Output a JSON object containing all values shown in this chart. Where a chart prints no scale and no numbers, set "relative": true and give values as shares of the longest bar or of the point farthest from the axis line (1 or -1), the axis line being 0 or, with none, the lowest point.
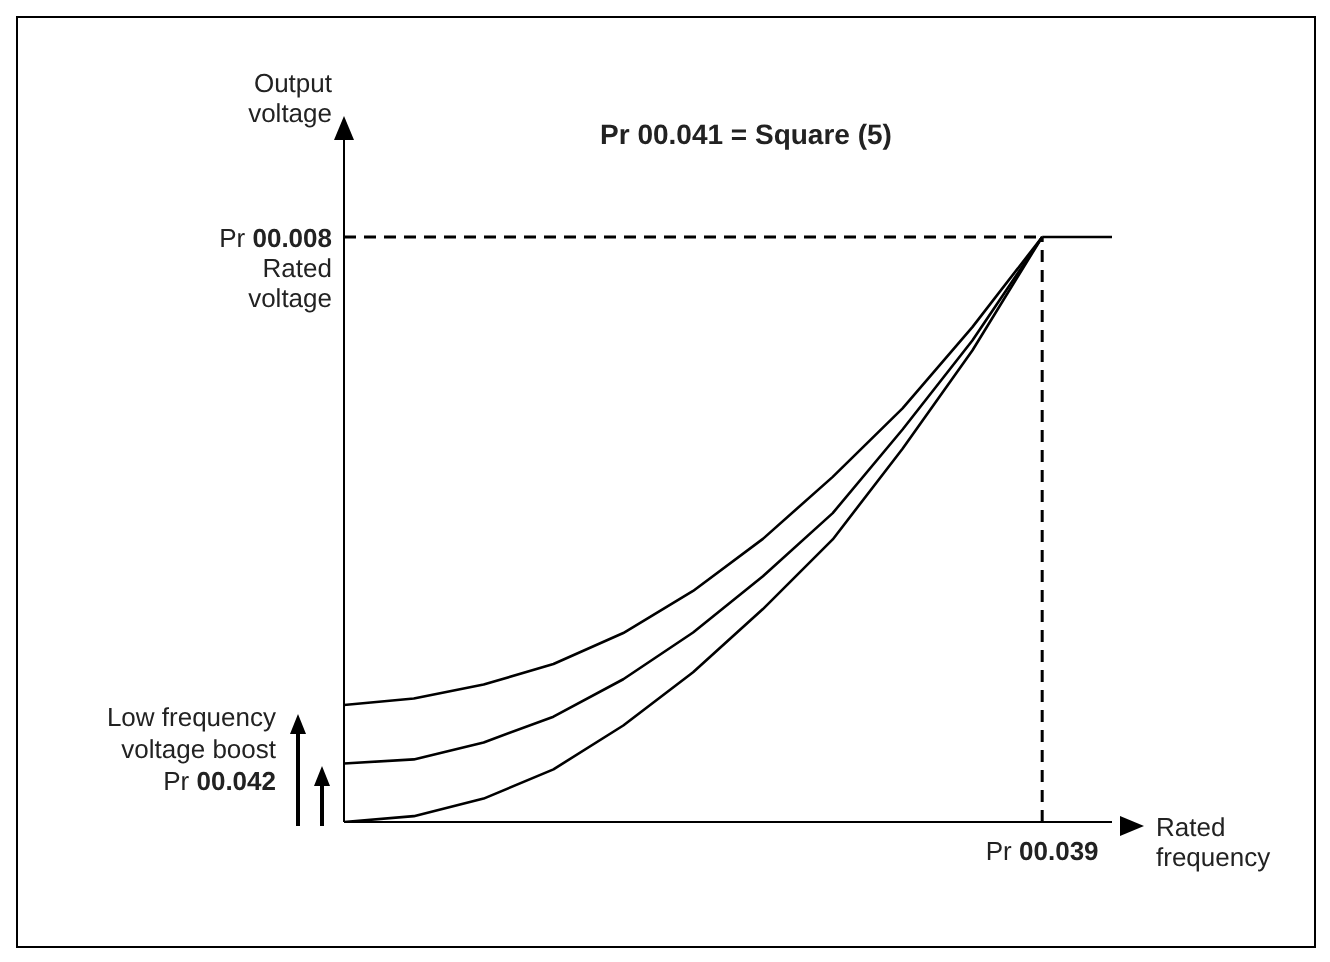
{
  "chart_data": {
    "type": "line",
    "title": "Pr 00.041 = Square (5)",
    "xlabel": "Rated\nfrequency",
    "ylabel": "Output\nvoltage",
    "relative": true,
    "categories": [
      null,
      null,
      null,
      null,
      null,
      null,
      null,
      null,
      null,
      null,
      null,
      null
    ],
    "series": [
      {
        "color": "#000000",
        "values": [
          0.2,
          0.211,
          0.235,
          0.27,
          0.323,
          0.395,
          0.484,
          0.59,
          0.707,
          0.846,
          1,
          null
        ]
      },
      {
        "color": "#000000",
        "values": [
          0.1,
          0.107,
          0.136,
          0.18,
          0.244,
          0.324,
          0.42,
          0.528,
          0.671,
          0.823,
          1,
          null
        ]
      },
      {
        "color": "#000000",
        "values": [
          0,
          0.01,
          0.04,
          0.09,
          0.165,
          0.256,
          0.364,
          0.483,
          0.638,
          0.806,
          1,
          null
        ]
      },
      {
        "color": "#000000",
        "values": [
          null,
          null,
          null,
          null,
          null,
          null,
          null,
          null,
          null,
          null,
          1,
          1
        ]
      }
    ],
    "ref_lines": [
      {
        "axis": "y",
        "value": 1,
        "label": "Pr 00.008\nRated\nvoltage",
        "line_style": "dashed",
        "color": "#000000"
      },
      {
        "axis": "x",
        "value": "Pr 00.039",
        "line_style": "dashed",
        "color": "#000000"
      }
    ],
    "annotations": [
      "Low frequency\nvoltage boost\nPr 00.042"
    ],
    "grid": false,
    "legend": false,
    "marker": "none",
    "line_style": "solid"
  }
}
